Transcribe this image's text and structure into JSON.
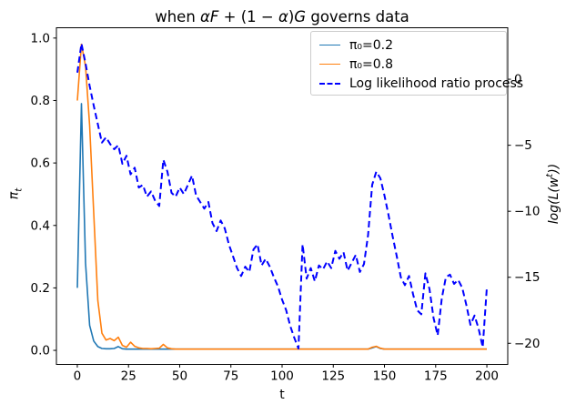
{
  "chart_data": {
    "type": "line",
    "title": "when αF + (1 − α)G governs data",
    "title_parts": [
      [
        "when ",
        ""
      ],
      [
        "αF",
        "i"
      ],
      [
        " + (1 − ",
        ""
      ],
      [
        "α",
        "i"
      ],
      [
        ")",
        ""
      ],
      [
        "G",
        "i"
      ],
      [
        " governs data",
        ""
      ]
    ],
    "xlabel": "t",
    "grid": false,
    "x_axis": {
      "ticks": [
        0,
        25,
        50,
        75,
        100,
        125,
        150,
        175,
        200
      ],
      "tick_labels": [
        "0",
        "25",
        "50",
        "75",
        "100",
        "125",
        "150",
        "175",
        "200"
      ],
      "range": [
        -10.2,
        210.2
      ]
    },
    "y_left": {
      "label": "πt",
      "label_parts": [
        [
          "π",
          "i"
        ],
        [
          "t",
          "sub"
        ]
      ],
      "ticks": [
        0.0,
        0.2,
        0.4,
        0.6,
        0.8,
        1.0
      ],
      "tick_labels": [
        "0.0",
        "0.2",
        "0.4",
        "0.6",
        "0.8",
        "1.0"
      ],
      "range": [
        -0.045,
        1.033
      ]
    },
    "y_right": {
      "label": "log(L(wt))",
      "label_parts": [
        [
          "log(L(w",
          "i"
        ],
        [
          "t",
          "sup"
        ],
        [
          "))",
          "i"
        ]
      ],
      "ticks": [
        0,
        -5,
        -10,
        -15,
        -20
      ],
      "tick_labels": [
        "0",
        "−5",
        "−10",
        "−15",
        "−20"
      ],
      "range": [
        -21.6,
        3.9
      ]
    },
    "legend": {
      "position": "upper right",
      "items": [
        {
          "label": "π₀=0.2",
          "color": "#1f77b4",
          "dash": false
        },
        {
          "label": "π₀=0.8",
          "color": "#ff7f0e",
          "dash": false
        },
        {
          "label": "Log likelihood ratio process",
          "color": "#0000ff",
          "dash": true
        }
      ]
    },
    "x": [
      0,
      2,
      4,
      6,
      8,
      10,
      12,
      14,
      16,
      18,
      20,
      22,
      24,
      26,
      28,
      30,
      32,
      34,
      36,
      38,
      40,
      42,
      44,
      46,
      48,
      50,
      52,
      54,
      56,
      58,
      60,
      62,
      64,
      66,
      68,
      70,
      72,
      74,
      76,
      78,
      80,
      82,
      84,
      86,
      88,
      90,
      92,
      94,
      96,
      98,
      100,
      102,
      104,
      106,
      108,
      110,
      112,
      114,
      116,
      118,
      120,
      122,
      124,
      126,
      128,
      130,
      132,
      134,
      136,
      138,
      140,
      142,
      144,
      146,
      148,
      150,
      152,
      154,
      156,
      158,
      160,
      162,
      164,
      166,
      168,
      170,
      172,
      174,
      176,
      178,
      180,
      182,
      184,
      186,
      188,
      190,
      192,
      194,
      196,
      198,
      200
    ],
    "series": [
      {
        "name": "π₀=0.2",
        "axis": "left",
        "color": "#1f77b4",
        "style": "solid",
        "width": 1.6,
        "values": [
          0.2,
          0.79,
          0.28,
          0.08,
          0.03,
          0.012,
          0.006,
          0.005,
          0.005,
          0.006,
          0.012,
          0.005,
          0.004,
          0.004,
          0.004,
          0.004,
          0.004,
          0.004,
          0.004,
          0.004,
          0.004,
          0.004,
          0.004,
          0.004,
          0.004,
          0.004,
          0.004,
          0.004,
          0.004,
          0.004,
          0.004,
          0.004,
          0.004,
          0.004,
          0.004,
          0.004,
          0.004,
          0.004,
          0.004,
          0.004,
          0.004,
          0.004,
          0.004,
          0.004,
          0.004,
          0.004,
          0.004,
          0.004,
          0.004,
          0.004,
          0.004,
          0.004,
          0.004,
          0.004,
          0.004,
          0.004,
          0.004,
          0.004,
          0.004,
          0.004,
          0.004,
          0.004,
          0.004,
          0.004,
          0.004,
          0.004,
          0.004,
          0.004,
          0.004,
          0.004,
          0.004,
          0.004,
          0.008,
          0.012,
          0.006,
          0.004,
          0.004,
          0.004,
          0.004,
          0.004,
          0.004,
          0.004,
          0.004,
          0.004,
          0.004,
          0.004,
          0.004,
          0.004,
          0.004,
          0.004,
          0.004,
          0.004,
          0.004,
          0.004,
          0.004,
          0.004,
          0.004,
          0.004,
          0.004,
          0.004,
          0.004
        ]
      },
      {
        "name": "π₀=0.8",
        "axis": "left",
        "color": "#ff7f0e",
        "style": "solid",
        "width": 1.6,
        "values": [
          0.8,
          0.98,
          0.91,
          0.72,
          0.44,
          0.16,
          0.055,
          0.033,
          0.038,
          0.031,
          0.042,
          0.016,
          0.01,
          0.026,
          0.013,
          0.008,
          0.006,
          0.006,
          0.005,
          0.006,
          0.007,
          0.019,
          0.008,
          0.005,
          0.004,
          0.004,
          0.004,
          0.004,
          0.004,
          0.004,
          0.004,
          0.004,
          0.004,
          0.004,
          0.004,
          0.004,
          0.004,
          0.004,
          0.004,
          0.004,
          0.004,
          0.004,
          0.004,
          0.004,
          0.004,
          0.004,
          0.004,
          0.004,
          0.004,
          0.004,
          0.004,
          0.004,
          0.004,
          0.004,
          0.004,
          0.004,
          0.004,
          0.004,
          0.004,
          0.004,
          0.004,
          0.004,
          0.004,
          0.004,
          0.004,
          0.004,
          0.004,
          0.004,
          0.004,
          0.004,
          0.004,
          0.004,
          0.01,
          0.013,
          0.007,
          0.004,
          0.004,
          0.004,
          0.004,
          0.004,
          0.004,
          0.004,
          0.004,
          0.004,
          0.004,
          0.004,
          0.004,
          0.004,
          0.004,
          0.004,
          0.004,
          0.004,
          0.004,
          0.004,
          0.004,
          0.004,
          0.004,
          0.004,
          0.004,
          0.004,
          0.004
        ]
      },
      {
        "name": "Log likelihood ratio process",
        "axis": "right",
        "color": "#0000ff",
        "style": "dashed",
        "width": 2,
        "values": [
          0.5,
          2.7,
          1.2,
          -0.5,
          -2.0,
          -3.4,
          -4.8,
          -4.4,
          -4.9,
          -5.3,
          -5.0,
          -6.4,
          -5.8,
          -7.2,
          -6.7,
          -8.2,
          -8.0,
          -8.9,
          -8.5,
          -9.2,
          -9.6,
          -6.1,
          -7.0,
          -8.6,
          -8.9,
          -8.2,
          -8.7,
          -8.0,
          -7.3,
          -8.8,
          -9.3,
          -9.8,
          -9.3,
          -10.9,
          -11.5,
          -10.7,
          -11.3,
          -12.5,
          -13.4,
          -14.3,
          -14.9,
          -14.2,
          -14.6,
          -12.9,
          -12.5,
          -14.1,
          -13.6,
          -14.2,
          -15.0,
          -15.7,
          -16.7,
          -17.5,
          -18.7,
          -19.6,
          -20.4,
          -12.5,
          -15.1,
          -14.3,
          -15.3,
          -14.1,
          -14.4,
          -13.8,
          -14.3,
          -13.0,
          -13.6,
          -13.1,
          -14.5,
          -13.9,
          -13.3,
          -14.6,
          -14.0,
          -11.8,
          -8.0,
          -7.0,
          -7.5,
          -8.8,
          -10.3,
          -11.9,
          -13.4,
          -15.0,
          -15.6,
          -14.9,
          -16.3,
          -17.5,
          -17.8,
          -14.7,
          -15.9,
          -18.1,
          -19.4,
          -16.6,
          -15.0,
          -14.8,
          -15.5,
          -15.2,
          -15.8,
          -17.1,
          -18.6,
          -17.9,
          -18.9,
          -20.3,
          -15.8
        ]
      }
    ]
  }
}
